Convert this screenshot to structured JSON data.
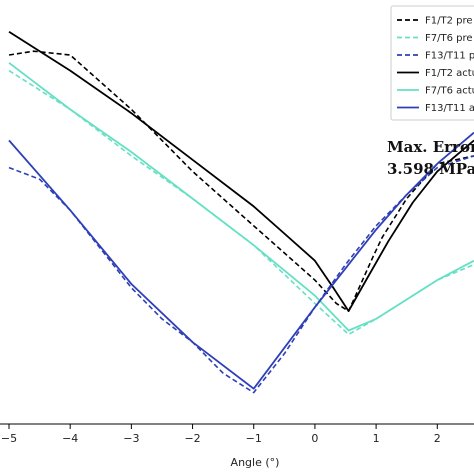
{
  "chart_data": {
    "type": "line",
    "title": "",
    "xlabel": "Angle (°)",
    "ylabel": "",
    "xlim": [
      -5.0,
      2.6
    ],
    "ylim": [
      0,
      1
    ],
    "x_ticks": [
      "−5",
      "−4",
      "−3",
      "−2",
      "−1",
      "0",
      "1",
      "2"
    ],
    "x_tick_values": [
      -5,
      -4,
      -3,
      -2,
      -1,
      0,
      1,
      2
    ],
    "grid": false,
    "legend_position": "top-right",
    "annotation": [
      "Max. Error",
      "3.598 MPa"
    ],
    "series": [
      {
        "name": "F1/T2 pre",
        "style": "dashed",
        "color": "#000000",
        "x": [
          -5.0,
          -4.6,
          -4.0,
          -3.5,
          -3.0,
          -2.5,
          -2.0,
          -1.5,
          -1.0,
          -0.5,
          0.0,
          0.35,
          0.55,
          0.75,
          0.95,
          1.1,
          1.5,
          2.0,
          2.6
        ],
        "y": [
          0.92,
          0.93,
          0.92,
          0.85,
          0.78,
          0.7,
          0.62,
          0.55,
          0.48,
          0.41,
          0.34,
          0.28,
          0.26,
          0.33,
          0.4,
          0.45,
          0.55,
          0.64,
          0.66
        ]
      },
      {
        "name": "F7/T6 pre",
        "style": "dashed",
        "color": "#66e0c4",
        "x": [
          -5.0,
          -4.0,
          -3.0,
          -2.0,
          -1.0,
          0.0,
          0.55,
          1.0,
          1.5,
          2.0,
          2.6
        ],
        "y": [
          0.88,
          0.78,
          0.66,
          0.55,
          0.43,
          0.28,
          0.2,
          0.24,
          0.29,
          0.34,
          0.38
        ]
      },
      {
        "name": "F13/T11 p",
        "style": "dashed",
        "color": "#2e3fb8",
        "x": [
          -5.0,
          -4.5,
          -4.0,
          -3.5,
          -3.0,
          -2.5,
          -2.0,
          -1.5,
          -1.0,
          -0.5,
          0.0,
          0.5,
          1.0,
          1.5,
          2.0,
          2.6
        ],
        "y": [
          0.63,
          0.6,
          0.52,
          0.42,
          0.32,
          0.24,
          0.18,
          0.1,
          0.05,
          0.15,
          0.27,
          0.38,
          0.48,
          0.56,
          0.63,
          0.66
        ]
      },
      {
        "name": "F1/T2 actu",
        "style": "solid",
        "color": "#000000",
        "x": [
          -5.0,
          -4.0,
          -3.0,
          -2.0,
          -1.0,
          -0.5,
          0.0,
          0.3,
          0.55,
          0.8,
          1.2,
          1.6,
          2.0,
          2.6
        ],
        "y": [
          0.98,
          0.88,
          0.77,
          0.65,
          0.53,
          0.46,
          0.39,
          0.32,
          0.26,
          0.33,
          0.44,
          0.54,
          0.62,
          0.7
        ]
      },
      {
        "name": "F7/T6 actu",
        "style": "solid",
        "color": "#66e0c4",
        "x": [
          -5.0,
          -4.0,
          -3.0,
          -2.0,
          -1.0,
          0.0,
          0.55,
          1.0,
          1.5,
          2.0,
          2.6
        ],
        "y": [
          0.9,
          0.78,
          0.67,
          0.55,
          0.43,
          0.3,
          0.21,
          0.24,
          0.29,
          0.34,
          0.39
        ]
      },
      {
        "name": "F13/T11 a",
        "style": "solid",
        "color": "#2e3fb8",
        "x": [
          -5.0,
          -4.0,
          -3.0,
          -2.0,
          -1.0,
          0.0,
          0.5,
          1.0,
          1.5,
          2.0,
          2.6
        ],
        "y": [
          0.7,
          0.52,
          0.33,
          0.18,
          0.06,
          0.27,
          0.37,
          0.47,
          0.56,
          0.64,
          0.72
        ]
      }
    ]
  }
}
